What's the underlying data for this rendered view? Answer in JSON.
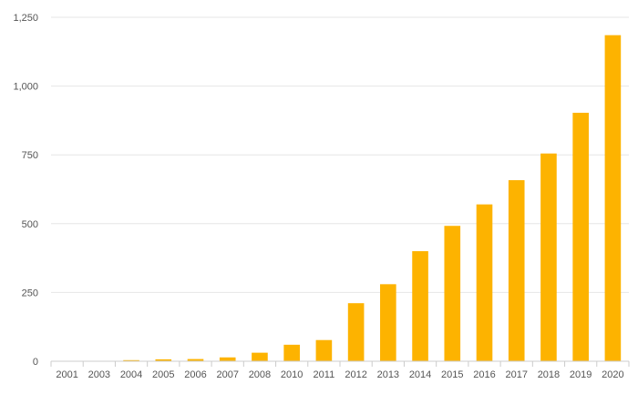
{
  "chart_data": {
    "type": "bar",
    "title": "",
    "xlabel": "",
    "ylabel": "",
    "categories": [
      "2001",
      "2003",
      "2004",
      "2005",
      "2006",
      "2007",
      "2008",
      "2010",
      "2011",
      "2012",
      "2013",
      "2014",
      "2015",
      "2016",
      "2017",
      "2018",
      "2019",
      "2020"
    ],
    "values": [
      1,
      1,
      4,
      7,
      8,
      14,
      31,
      60,
      77,
      211,
      280,
      400,
      492,
      570,
      658,
      755,
      903,
      1185
    ],
    "y_ticks": [
      0,
      250,
      500,
      750,
      1000,
      1250
    ],
    "y_tick_labels": [
      "0",
      "250",
      "500",
      "750",
      "1,000",
      "1,250"
    ],
    "ylim": [
      0,
      1250
    ],
    "grid": true,
    "bar_color": "#FDB300"
  }
}
